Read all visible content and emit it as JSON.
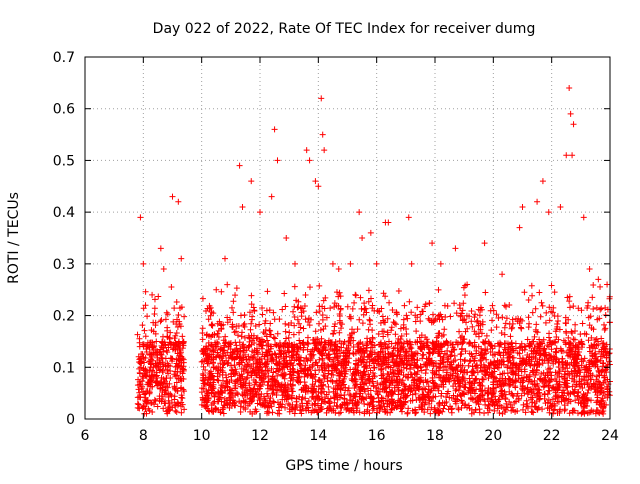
{
  "chart_data": {
    "type": "scatter",
    "title": "Day 022 of 2022, Rate Of TEC Index for receiver dumg",
    "xlabel": "GPS time / hours",
    "ylabel": "ROTI / TECUs",
    "xlim": [
      6,
      24
    ],
    "ylim": [
      0,
      0.7
    ],
    "x_ticks": [
      "6",
      "8",
      "10",
      "12",
      "14",
      "16",
      "18",
      "20",
      "22",
      "24"
    ],
    "y_ticks": [
      "0",
      "0.1",
      "0.2",
      "0.3",
      "0.4",
      "0.5",
      "0.6",
      "0.7"
    ],
    "grid": true,
    "marker": "+",
    "color": "#ff0000",
    "coverage_hours": [
      [
        7.8,
        9.4
      ],
      [
        10.0,
        24.0
      ]
    ],
    "series": [
      {
        "points": [
          [
            7.9,
            0.39
          ],
          [
            8.0,
            0.3
          ],
          [
            8.3,
            0.24
          ],
          [
            8.6,
            0.33
          ],
          [
            8.7,
            0.29
          ],
          [
            9.0,
            0.43
          ],
          [
            9.2,
            0.42
          ],
          [
            9.3,
            0.31
          ],
          [
            10.5,
            0.25
          ],
          [
            10.8,
            0.31
          ],
          [
            11.3,
            0.49
          ],
          [
            11.4,
            0.41
          ],
          [
            11.7,
            0.46
          ],
          [
            12.0,
            0.4
          ],
          [
            12.4,
            0.43
          ],
          [
            12.5,
            0.56
          ],
          [
            12.6,
            0.5
          ],
          [
            12.9,
            0.35
          ],
          [
            13.2,
            0.3
          ],
          [
            13.6,
            0.52
          ],
          [
            13.7,
            0.5
          ],
          [
            13.9,
            0.46
          ],
          [
            14.0,
            0.45
          ],
          [
            14.1,
            0.62
          ],
          [
            14.15,
            0.55
          ],
          [
            14.2,
            0.52
          ],
          [
            14.5,
            0.3
          ],
          [
            14.7,
            0.29
          ],
          [
            15.1,
            0.3
          ],
          [
            15.4,
            0.4
          ],
          [
            15.5,
            0.35
          ],
          [
            15.8,
            0.36
          ],
          [
            16.0,
            0.3
          ],
          [
            16.3,
            0.38
          ],
          [
            16.4,
            0.38
          ],
          [
            17.1,
            0.39
          ],
          [
            17.2,
            0.3
          ],
          [
            17.9,
            0.34
          ],
          [
            18.2,
            0.3
          ],
          [
            18.7,
            0.33
          ],
          [
            19.1,
            0.26
          ],
          [
            19.7,
            0.34
          ],
          [
            20.3,
            0.28
          ],
          [
            20.9,
            0.37
          ],
          [
            21.0,
            0.41
          ],
          [
            21.5,
            0.42
          ],
          [
            21.7,
            0.46
          ],
          [
            21.9,
            0.4
          ],
          [
            22.3,
            0.41
          ],
          [
            22.5,
            0.51
          ],
          [
            22.6,
            0.64
          ],
          [
            22.65,
            0.59
          ],
          [
            22.7,
            0.51
          ],
          [
            22.75,
            0.57
          ],
          [
            23.1,
            0.39
          ],
          [
            23.3,
            0.29
          ],
          [
            23.6,
            0.27
          ],
          [
            23.9,
            0.26
          ]
        ]
      }
    ]
  }
}
